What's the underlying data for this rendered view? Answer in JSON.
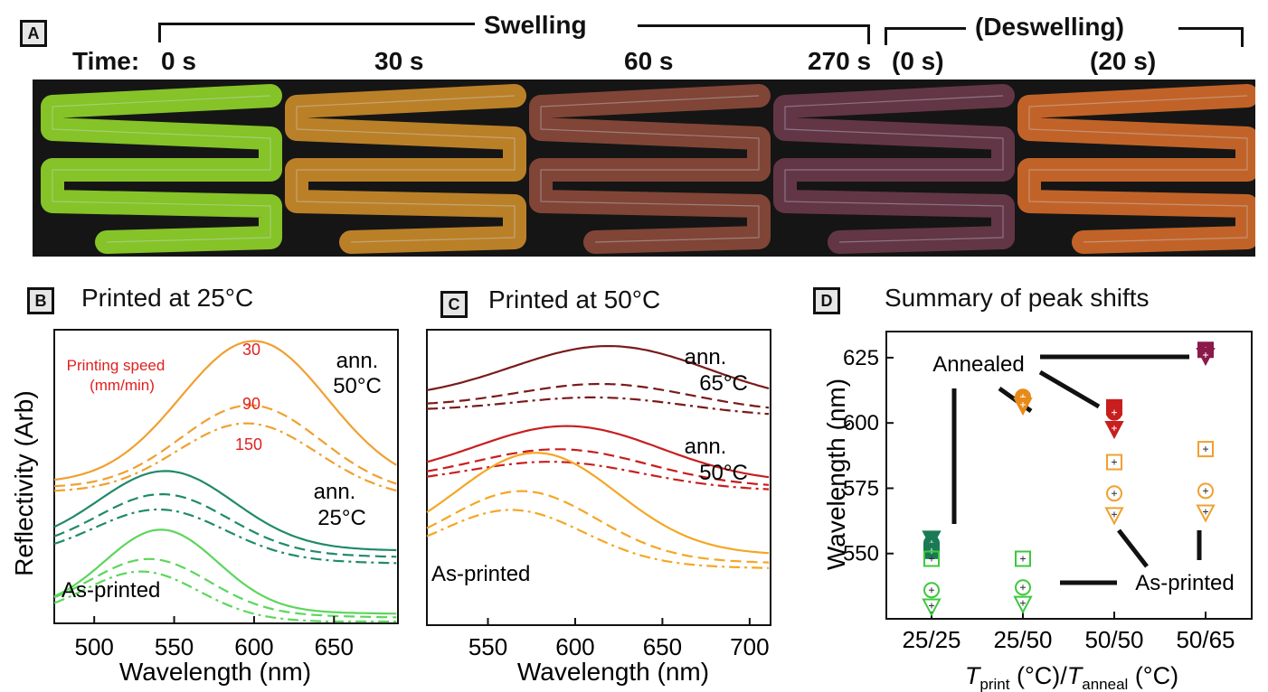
{
  "panel_a": {
    "label": "A",
    "swelling": "Swelling",
    "deswelling": "(Deswelling)",
    "time_prefix": "Time:",
    "times": [
      "0 s",
      "30 s",
      "60 s",
      "270 s",
      "(0 s)",
      "(20 s)"
    ],
    "photo_tints": [
      "#8fd22a",
      "#c98a2a",
      "#8a4a3a",
      "#6a3a4a",
      "#d06a2a"
    ]
  },
  "panel_b": {
    "label": "B",
    "title": "Printed at 25°C",
    "legend_title_1": "Printing speed",
    "legend_title_2": "(mm/min)",
    "speeds": [
      "30",
      "90",
      "150"
    ],
    "ann50_1": "ann.",
    "ann50_2": "50°C",
    "ann25_1": "ann.",
    "ann25_2": "25°C",
    "asprinted": "As-printed",
    "ylabel": "Reflectivity (Arb)",
    "xlabel": "Wavelength (nm)",
    "xticks": [
      "500",
      "550",
      "600",
      "650"
    ]
  },
  "panel_c": {
    "label": "C",
    "title": "Printed at 50°C",
    "ann65_1": "ann.",
    "ann65_2": "65°C",
    "ann50_1": "ann.",
    "ann50_2": "50°C",
    "asprinted": "As-printed",
    "xlabel": "Wavelength (nm)",
    "xticks": [
      "550",
      "600",
      "650",
      "700"
    ]
  },
  "panel_d": {
    "label": "D",
    "title": "Summary of peak shifts",
    "annealed": "Annealed",
    "asprinted": "As-printed",
    "ylabel": "Wavelength (nm)",
    "xlabel_T": "T",
    "xlabel_sub1": "print",
    "xlabel_mid": " (°C)/",
    "xlabel_T2": "T",
    "xlabel_sub2": "anneal",
    "xlabel_end": " (°C)",
    "yticks": [
      "550",
      "575",
      "600",
      "625"
    ],
    "xticks": [
      "25/25",
      "25/50",
      "50/50",
      "50/65"
    ]
  },
  "chart_data": [
    {
      "type": "line",
      "title": "Printed at 25°C",
      "xlabel": "Wavelength (nm)",
      "ylabel": "Reflectivity (Arb)",
      "xlim": [
        475,
        690
      ],
      "series": [
        {
          "group": "ann. 50°C",
          "name": "30",
          "style": "solid",
          "color": "#f0a030",
          "peak": 600
        },
        {
          "group": "ann. 50°C",
          "name": "90",
          "style": "dashed",
          "color": "#f0a030",
          "peak": 598
        },
        {
          "group": "ann. 50°C",
          "name": "150",
          "style": "dashdot",
          "color": "#f0a030",
          "peak": 596
        },
        {
          "group": "ann. 25°C",
          "name": "30",
          "style": "solid",
          "color": "#1f8a6a",
          "peak": 545
        },
        {
          "group": "ann. 25°C",
          "name": "90",
          "style": "dashed",
          "color": "#1f8a6a",
          "peak": 543
        },
        {
          "group": "ann. 25°C",
          "name": "150",
          "style": "dashdot",
          "color": "#1f8a6a",
          "peak": 541
        },
        {
          "group": "As-printed",
          "name": "30",
          "style": "solid",
          "color": "#5cd65c",
          "peak": 542
        },
        {
          "group": "As-printed",
          "name": "90",
          "style": "dashed",
          "color": "#5cd65c",
          "peak": 535
        },
        {
          "group": "As-printed",
          "name": "150",
          "style": "dashdot",
          "color": "#5cd65c",
          "peak": 530
        }
      ]
    },
    {
      "type": "line",
      "title": "Printed at 50°C",
      "xlabel": "Wavelength (nm)",
      "xlim": [
        515,
        712
      ],
      "series": [
        {
          "group": "ann. 65°C",
          "name": "30",
          "style": "solid",
          "color": "#7a1a1a",
          "peak": 620
        },
        {
          "group": "ann. 65°C",
          "name": "90",
          "style": "dashed",
          "color": "#7a1a1a",
          "peak": 617
        },
        {
          "group": "ann. 65°C",
          "name": "150",
          "style": "dashdot",
          "color": "#7a1a1a",
          "peak": 614
        },
        {
          "group": "ann. 50°C",
          "name": "30",
          "style": "solid",
          "color": "#c81e1e",
          "peak": 596
        },
        {
          "group": "ann. 50°C",
          "name": "90",
          "style": "dashed",
          "color": "#c81e1e",
          "peak": 592
        },
        {
          "group": "ann. 50°C",
          "name": "150",
          "style": "dashdot",
          "color": "#c81e1e",
          "peak": 588
        },
        {
          "group": "As-printed",
          "name": "30",
          "style": "solid",
          "color": "#f5a623",
          "peak": 578
        },
        {
          "group": "As-printed",
          "name": "90",
          "style": "dashed",
          "color": "#f5a623",
          "peak": 570
        },
        {
          "group": "As-printed",
          "name": "150",
          "style": "dashdot",
          "color": "#f5a623",
          "peak": 564
        }
      ]
    },
    {
      "type": "scatter",
      "title": "Summary of peak shifts",
      "xlabel": "Tprint (°C)/Tanneal (°C)",
      "ylabel": "Wavelength (nm)",
      "categories": [
        "25/25",
        "25/50",
        "50/50",
        "50/65"
      ],
      "ylim": [
        525,
        635
      ],
      "series": [
        {
          "name": "Annealed",
          "marker": "filled",
          "points": [
            {
              "x": "25/25",
              "y": 556,
              "color": "#1a7a55",
              "shape": "triangle"
            },
            {
              "x": "25/25",
              "y": 554,
              "color": "#1a7a55",
              "shape": "circle"
            },
            {
              "x": "25/25",
              "y": 551,
              "color": "#1a7a55",
              "shape": "square"
            },
            {
              "x": "25/50",
              "y": 610,
              "color": "#e88a1a",
              "shape": "circle"
            },
            {
              "x": "25/50",
              "y": 607,
              "color": "#e88a1a",
              "shape": "triangle"
            },
            {
              "x": "50/50",
              "y": 606,
              "color": "#c81e1e",
              "shape": "square"
            },
            {
              "x": "50/50",
              "y": 604,
              "color": "#c81e1e",
              "shape": "circle"
            },
            {
              "x": "50/50",
              "y": 598,
              "color": "#c81e1e",
              "shape": "triangle"
            },
            {
              "x": "50/65",
              "y": 628,
              "color": "#8a1a4a",
              "shape": "square"
            },
            {
              "x": "50/65",
              "y": 626,
              "color": "#8a1a4a",
              "shape": "triangle"
            }
          ]
        },
        {
          "name": "As-printed",
          "marker": "open",
          "points": [
            {
              "x": "25/25",
              "y": 548,
              "color": "#3cc83c",
              "shape": "square"
            },
            {
              "x": "25/25",
              "y": 536,
              "color": "#3cc83c",
              "shape": "circle"
            },
            {
              "x": "25/25",
              "y": 530,
              "color": "#3cc83c",
              "shape": "triangle"
            },
            {
              "x": "25/50",
              "y": 548,
              "color": "#3cc83c",
              "shape": "square"
            },
            {
              "x": "25/50",
              "y": 537,
              "color": "#3cc83c",
              "shape": "circle"
            },
            {
              "x": "25/50",
              "y": 531,
              "color": "#3cc83c",
              "shape": "triangle"
            },
            {
              "x": "50/50",
              "y": 585,
              "color": "#f0a030",
              "shape": "square"
            },
            {
              "x": "50/50",
              "y": 573,
              "color": "#f0a030",
              "shape": "circle"
            },
            {
              "x": "50/50",
              "y": 565,
              "color": "#f0a030",
              "shape": "triangle"
            },
            {
              "x": "50/65",
              "y": 590,
              "color": "#f0a030",
              "shape": "square"
            },
            {
              "x": "50/65",
              "y": 574,
              "color": "#f0a030",
              "shape": "circle"
            },
            {
              "x": "50/65",
              "y": 566,
              "color": "#f0a030",
              "shape": "triangle"
            }
          ]
        }
      ]
    }
  ]
}
